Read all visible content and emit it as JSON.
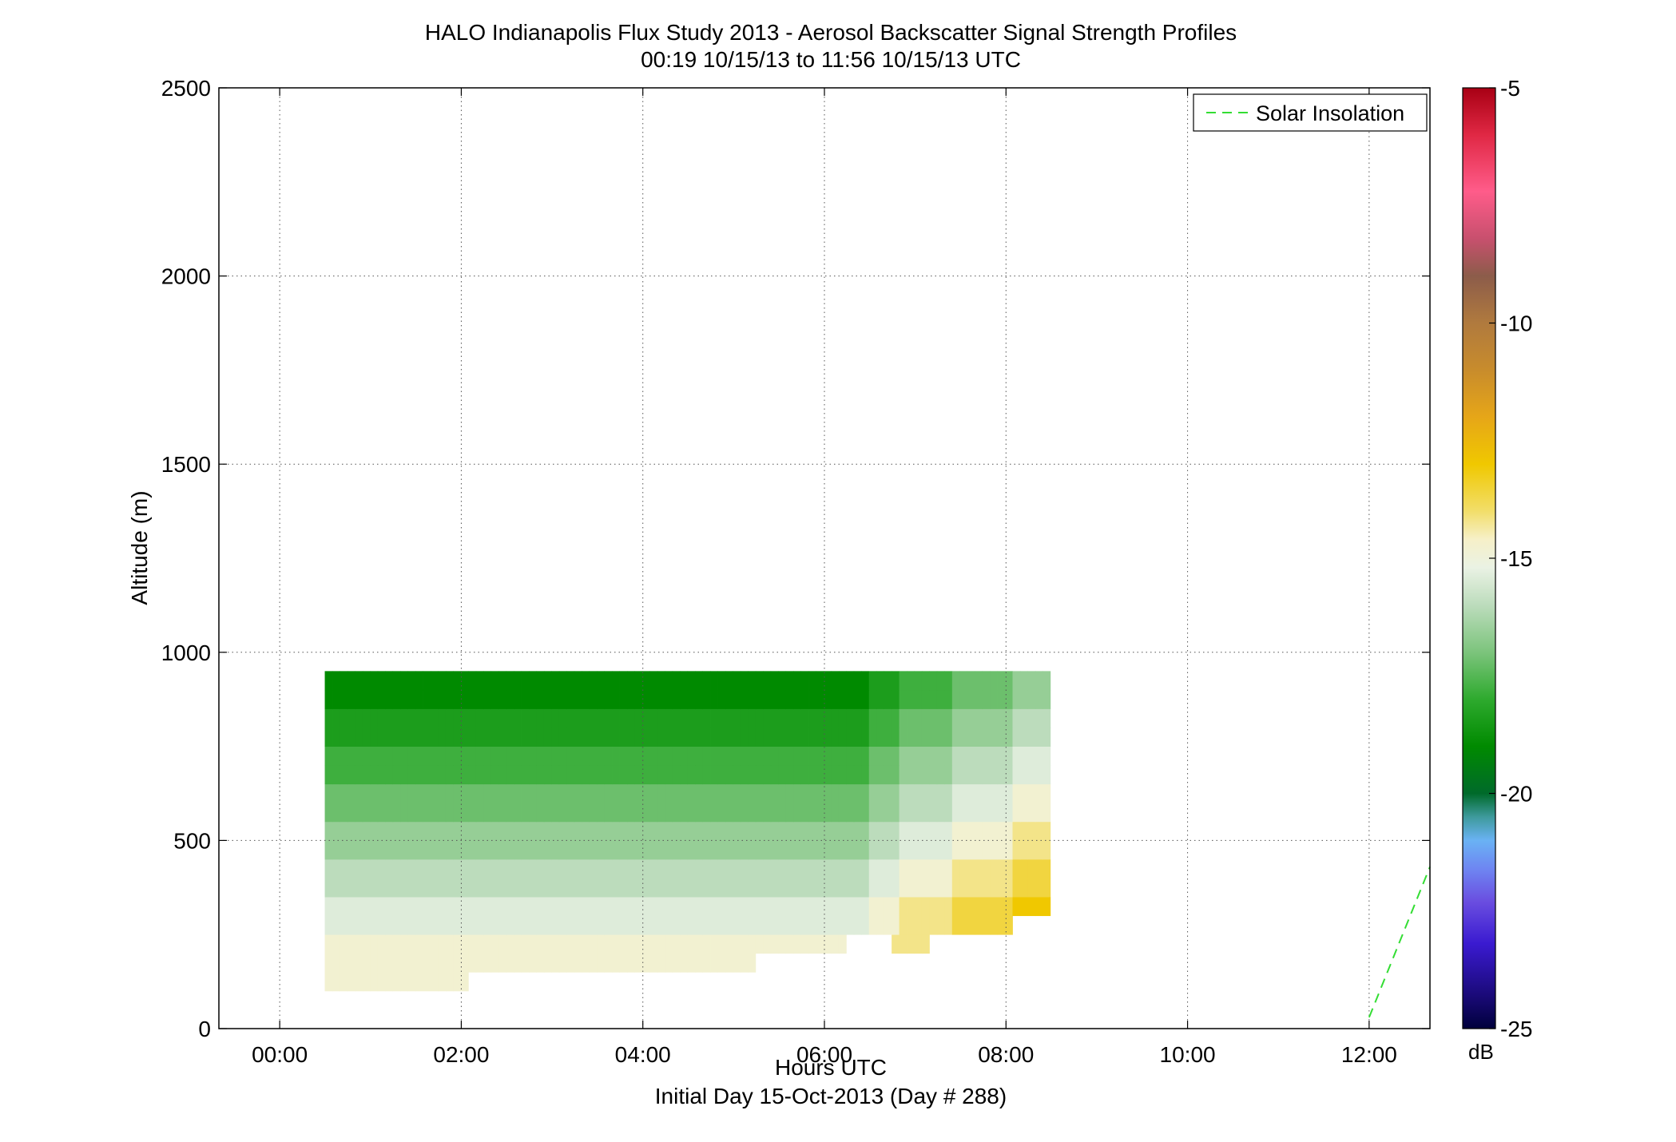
{
  "chart_data": {
    "type": "heatmap",
    "title": "HALO Indianapolis Flux Study 2013 - Aerosol Backscatter Signal Strength Profiles",
    "subtitle": "00:19 10/15/13 to 11:56 10/15/13  UTC",
    "xlabel": "Hours UTC",
    "xlabel2": "Initial Day 15-Oct-2013 (Day # 288)",
    "ylabel": "Altitude (m)",
    "xlim": [
      -0.67,
      12.67
    ],
    "ylim": [
      0,
      2500
    ],
    "grid": true,
    "xticks": [
      0,
      2,
      4,
      6,
      8,
      10,
      12
    ],
    "xtick_labels": [
      "00:00",
      "02:00",
      "04:00",
      "06:00",
      "08:00",
      "10:00",
      "12:00"
    ],
    "yticks": [
      0,
      500,
      1000,
      1500,
      2000,
      2500
    ],
    "ytick_labels": [
      "0",
      "500",
      "1000",
      "1500",
      "2000",
      "2500"
    ],
    "legend": {
      "entries": [
        "Solar Insolation"
      ],
      "placement": "top-right"
    },
    "solar_insolation": {
      "name": "Solar Insolation",
      "color": "#33dd33",
      "x": [
        12.0,
        12.67
      ],
      "y": [
        30,
        430
      ]
    },
    "colorbar": {
      "label": "dB",
      "range": [
        -25,
        -5
      ],
      "ticks": [
        -5,
        -10,
        -15,
        -20,
        -25
      ],
      "tick_labels": [
        "-5",
        "-10",
        "-15",
        "-20",
        "-25"
      ],
      "stops": [
        {
          "v": -25,
          "c": "#00003c"
        },
        {
          "v": -24.3,
          "c": "#1a0a78"
        },
        {
          "v": -23.2,
          "c": "#3a1ad0"
        },
        {
          "v": -22.3,
          "c": "#6a4ee0"
        },
        {
          "v": -21.6,
          "c": "#6e86f2"
        },
        {
          "v": -21.0,
          "c": "#6ab2f4"
        },
        {
          "v": -20.5,
          "c": "#3e9a9c"
        },
        {
          "v": -20.0,
          "c": "#006a2a"
        },
        {
          "v": -19.0,
          "c": "#008a00"
        },
        {
          "v": -18.0,
          "c": "#2eaa2e"
        },
        {
          "v": -17.0,
          "c": "#7cc47c"
        },
        {
          "v": -16.0,
          "c": "#bcdcbc"
        },
        {
          "v": -15.2,
          "c": "#eaf2e4"
        },
        {
          "v": -14.6,
          "c": "#f6f0c8"
        },
        {
          "v": -14.0,
          "c": "#f2de6a"
        },
        {
          "v": -13.0,
          "c": "#f0c800"
        },
        {
          "v": -12.0,
          "c": "#e6a618"
        },
        {
          "v": -11.0,
          "c": "#c88c2c"
        },
        {
          "v": -10.0,
          "c": "#b07a3e"
        },
        {
          "v": -9.0,
          "c": "#8c5c4a"
        },
        {
          "v": -8.2,
          "c": "#c8506e"
        },
        {
          "v": -7.2,
          "c": "#ff5c8a"
        },
        {
          "v": -6.0,
          "c": "#e02844"
        },
        {
          "v": -5.0,
          "c": "#a80014"
        }
      ]
    },
    "grid_spec": {
      "x_start": 0.33,
      "x_step": 0.333,
      "y_step": 50,
      "missing": ".",
      "cell_ranges": []
    },
    "cells": [
      "............................................................................................................................................",
      "............................................................................................................................................",
      "..HHHHHHHHHHHHHHHHHHH...................................................................................................................",
      "..HHHHHHHHHHHHHHHHHHHHHHHHHHHHHHHHHHHHHHHHHHHHHHHHHHHHHHHHH...........................................................................",
      "..HHHHHHHHHHHHHHHHHHHHHHHHHHHHHHHHHHHHHHHHHHHHHHHHHHHHHHHHHHHHHHHHHHHHH......IIIII.......................................................",
      "..GGGGGGGGGGGGGGGGGGGGGGGGGGGGGGGGGGGGGGGGGGGGGGGGGGGGGGGGGGGGGGGGGGGGGGGGHHHHIIIIIIIJJJJJJJJ...........................................",
      "..GGGGGGGGGGGGGGGGGGGGGGGGGGGGGGGGGGGGGGGGGGGGGGGGGGGGGGGGGGGGGGGGGGGGGGGGHHHHIIIIIIIJJJJJJJJKKKKK........................................",
      "..FFFFFFFFFFFFFFFFFFFFFFFFFFFFFFFFFFFFFFFFFFFFFFFFFFFFFFFFFFFFFFFFFFFFFFFFGGGGHHHHHHHIIIIIIIIJJJJJ........................................",
      "..FFFFFFFFFFFFFFFFFFFFFFFFFFFFFFFFFFFFFFFFFFFFFFFFFFFFFFFFFFFFFFFFFFFFFFFFGGGGHHHHHHHIIIIIIIIJJJJJ........................................",
      "..EEEEEEEEEEEEEEEEEEEEEEEEEEEEEEEEEEEEEEEEEEEEEEEEEEEEEEEEEEEEEEEEEEEEEEEEFFFFGGGGGGGHHHHHHHHIIIII........................................",
      "..EEEEEEEEEEEEEEEEEEEEEEEEEEEEEEEEEEEEEEEEEEEEEEEEEEEEEEEEEEEEEEEEEEEEEEEEFFFFGGGGGGGHHHHHHHHIIIII........................................",
      "..DDDDDDDDDDDDDDDDDDDDDDDDDDDDDDDDDDDDDDDDDDDDDDDDDDDDDDDDDDDDDDDDDDDDDDDDEEEEFFFFFFFGGGGGGGGHHHHH........................................",
      "..DDDDDDDDDDDDDDDDDDDDDDDDDDDDDDDDDDDDDDDDDDDDDDDDDDDDDDDDDDDDDDDDDDDDDDDDEEEEFFFFFFFGGGGGGGGHHHHH........................................",
      "..CCCCCCCCCCCCCCCCCCCCCCCCCCCCCCCCCCCCCCCCCCCCCCCCCCCCCCCCCCCCCCCCCCCCCCCCDDDDEEEEEEEFFFFFFFFGGGGG........................................",
      "..CCCCCCCCCCCCCCCCCCCCCCCCCCCCCCCCCCCCCCCCCCCCCCCCCCCCCCCCCCCCCCCCCCCCCCCCDDDDEEEEEEEFFFFFFFFGGGGG........................................",
      "..BBBBBBBBBBBBBBBBBBBBBBBBBBBBBBBBBBBBBBBBBBBBBBBBBBBBBBBBBBBBBBBBBBBBBBBBCCCCDDDDDDDEEEEEEEEFFFFF........................................",
      "..BBBBBBBBBBBBBBBBBBBBBBBBBBBBBBBBBBBBBBBBBBBBBBBBBBBBBBBBBBBBBBBBBBBBBBBBCCCCDDDDDDDEEEEEEEEFFFFF........................................",
      "..AAAAAAAAAAAAAAAAAAAAAAAAAAAAAAAAAAAAAAAAAAAAAAAAAAAAAAAAAAAAAAAAAAAAAAAABBBBCCCCCCCDDDDDDDDEEEEE........................................",
      "..AAAAAAAAAAAAAAAAAAAAAAAAAAAAAAAAAAAAAAAAAAAAAAAAAAAAAAAAAAAAAAAAAAAAAAAABBBBCCCCCCCDDDDDDDDEEEEE........................................"
    ]
  }
}
